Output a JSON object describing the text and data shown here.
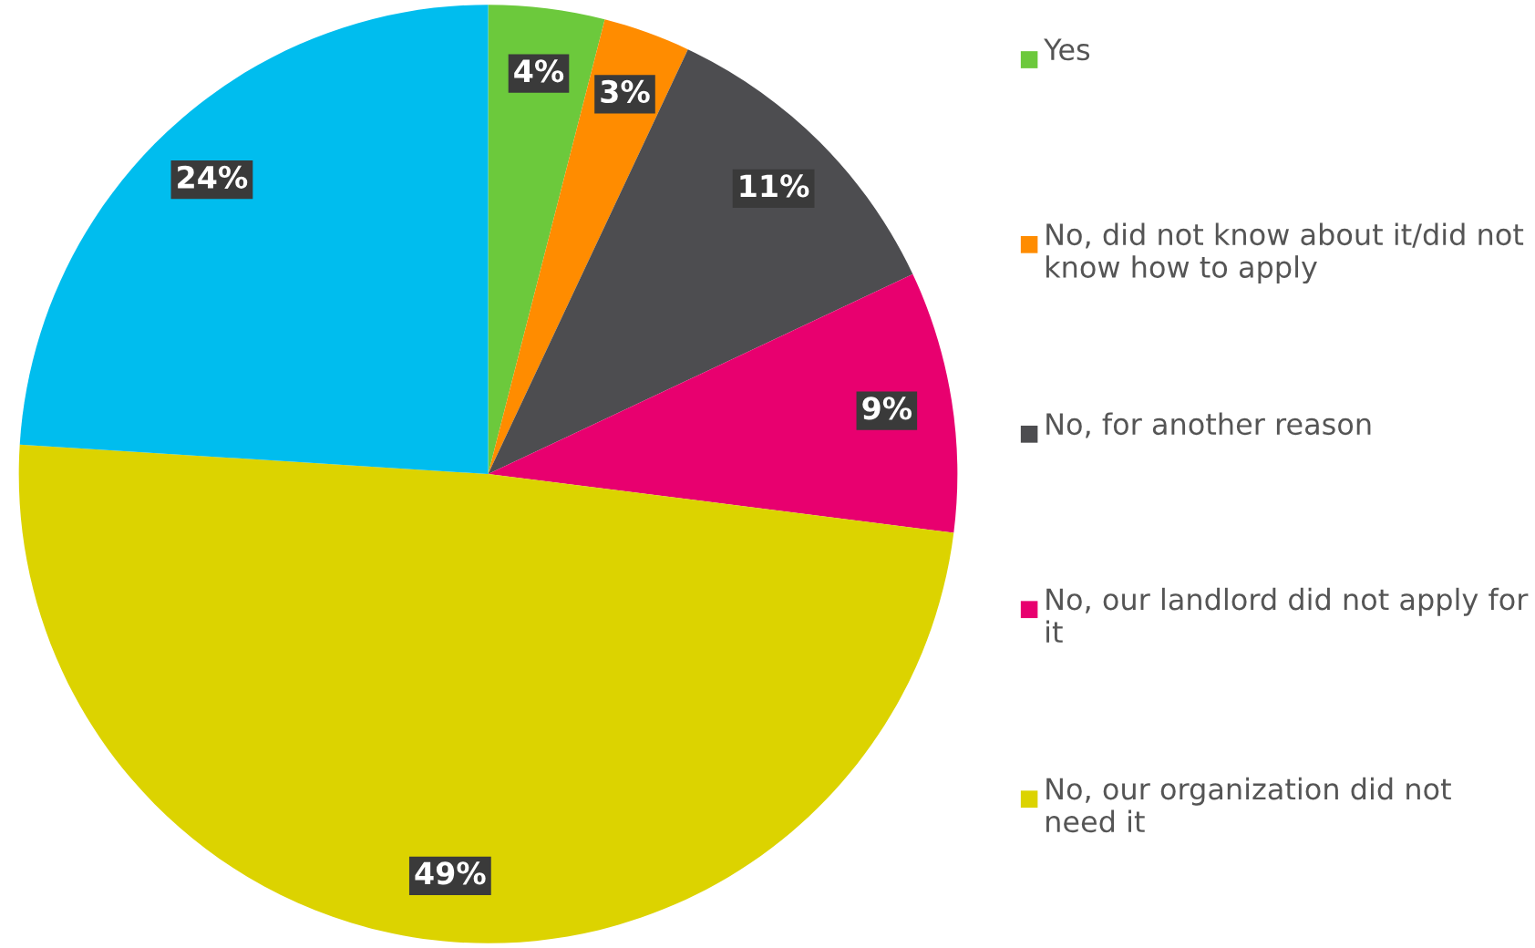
{
  "chart_data": {
    "type": "pie",
    "categories": [
      "Yes",
      "No, did not know about it/did not know how to apply",
      "No, for another reason",
      "No, our landlord did not apply for it",
      "No, our organization did not need it",
      null
    ],
    "values": [
      4,
      3,
      11,
      9,
      49,
      24
    ],
    "colors": [
      "#6cc93c",
      "#ff8c00",
      "#4d4d50",
      "#e8006f",
      "#dcd300",
      "#00bdee"
    ],
    "value_labels": [
      "4%",
      "3%",
      "11%",
      "9%",
      "49%",
      "24%"
    ],
    "legend": "right"
  }
}
